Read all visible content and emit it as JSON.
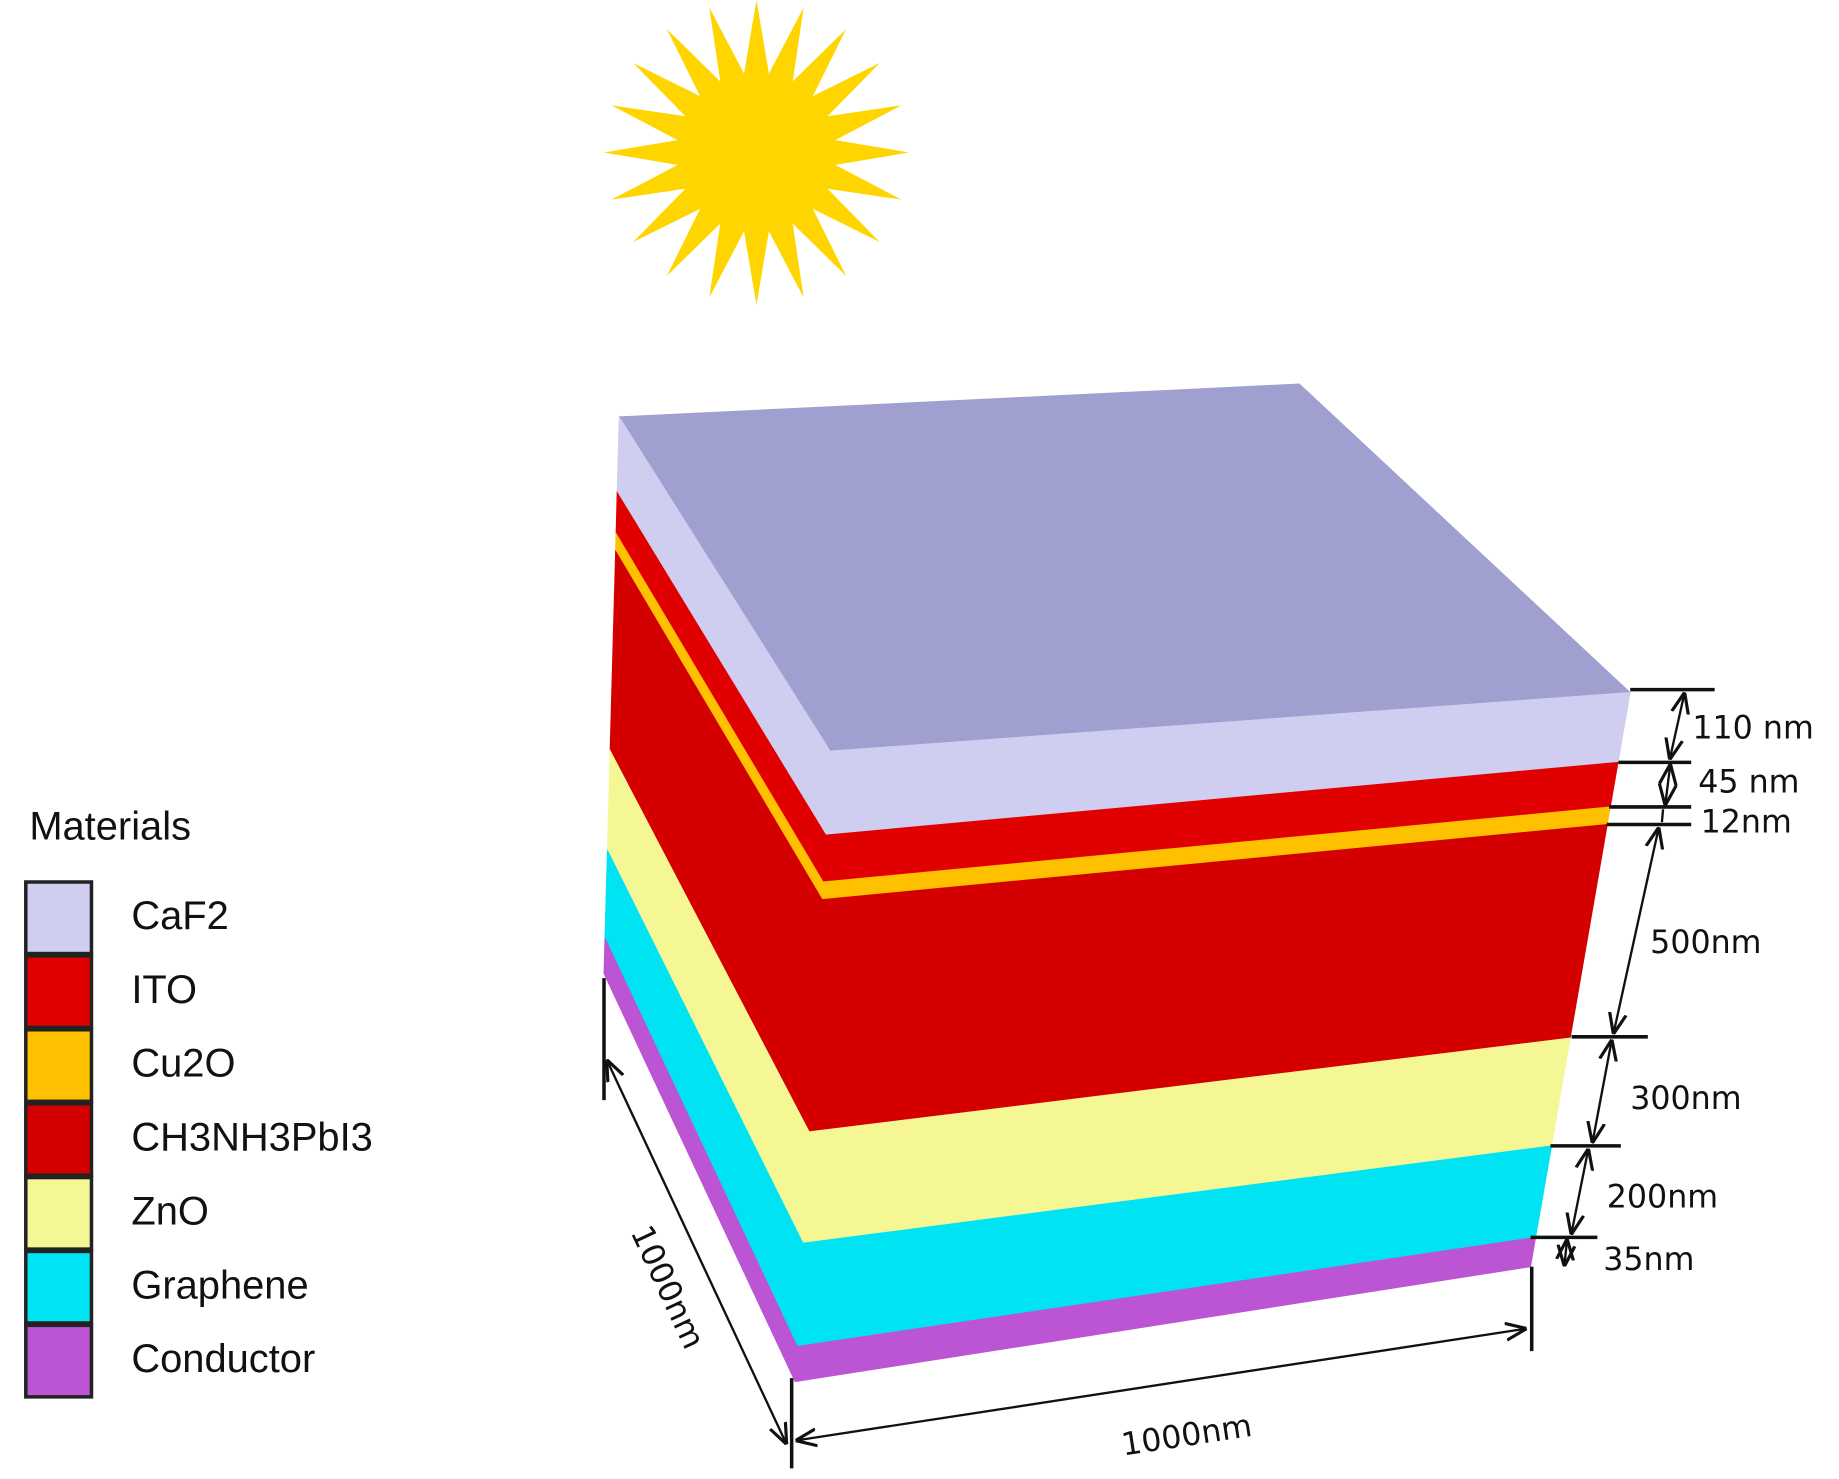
{
  "legend": {
    "title": "Materials",
    "items": [
      {
        "label": "CaF2",
        "color": "#d0cef0"
      },
      {
        "label": "ITO",
        "color": "#e00000"
      },
      {
        "label": "Cu2O",
        "color": "#ffc000"
      },
      {
        "label": "CH3NH3PbI3",
        "color": "#d40000"
      },
      {
        "label": "ZnO",
        "color": "#f5f795"
      },
      {
        "label": "Graphene",
        "color": "#00e3f3"
      },
      {
        "label": "Conductor",
        "color": "#bb55d4"
      }
    ]
  },
  "top_face_color": "#9fa0cf",
  "sun_color": "#ffd500",
  "thickness_labels": [
    "110 nm",
    "45 nm",
    "12nm",
    "500nm",
    "300nm",
    "200nm",
    "35nm"
  ],
  "width_label": "1000nm",
  "depth_label": "1000nm"
}
